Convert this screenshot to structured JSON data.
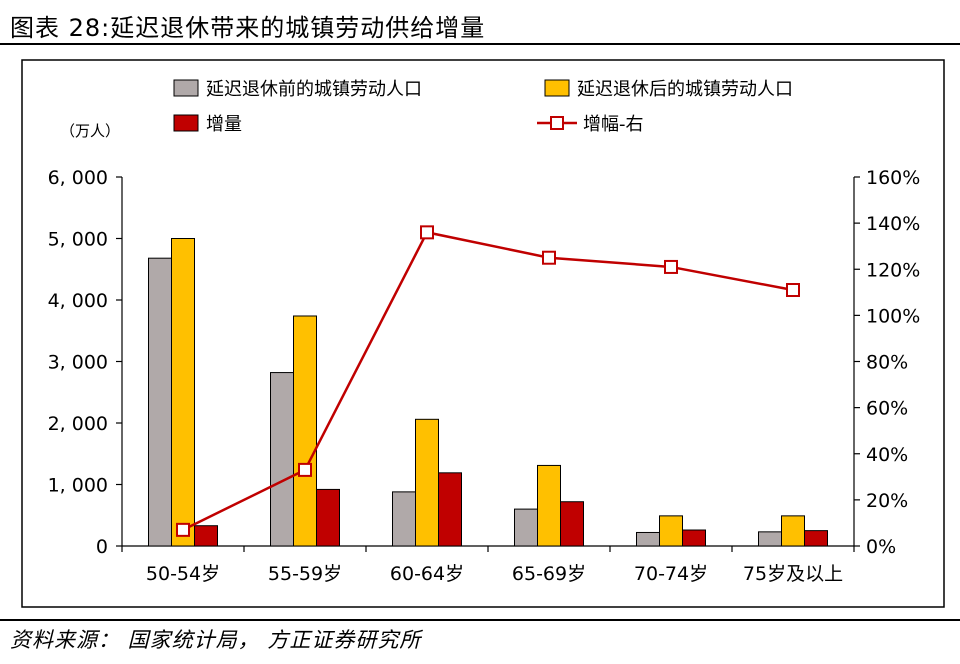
{
  "title": "图表 28:延迟退休带来的城镇劳动供给增量",
  "source": "资料来源：  国家统计局，  方正证券研究所",
  "y_unit_label": "（万人）",
  "chart_data": {
    "type": "bar",
    "categories": [
      "50-54岁",
      "55-59岁",
      "60-64岁",
      "65-69岁",
      "70-74岁",
      "75岁及以上"
    ],
    "series": [
      {
        "name": "延迟退休前的城镇劳动人口",
        "type": "bar",
        "axis": "left",
        "color": "#b0a9a9",
        "values": [
          4680,
          2820,
          880,
          600,
          220,
          230
        ]
      },
      {
        "name": "延迟退休后的城镇劳动人口",
        "type": "bar",
        "axis": "left",
        "color": "#ffc000",
        "values": [
          5000,
          3740,
          2060,
          1310,
          490,
          490
        ]
      },
      {
        "name": "增量",
        "type": "bar",
        "axis": "left",
        "color": "#c00000",
        "values": [
          330,
          920,
          1190,
          720,
          260,
          250
        ]
      },
      {
        "name": "增幅-右",
        "type": "line",
        "axis": "right",
        "color": "#c00000",
        "values": [
          7,
          33,
          136,
          125,
          121,
          111
        ]
      }
    ],
    "ylim_left": [
      0,
      6000
    ],
    "yticks_left": [
      0,
      1000,
      2000,
      3000,
      4000,
      5000,
      6000
    ],
    "yticklabels_left": [
      "0",
      "1, 000",
      "2, 000",
      "3, 000",
      "4, 000",
      "5, 000",
      "6, 000"
    ],
    "ylim_right": [
      0,
      160
    ],
    "yticks_right": [
      0,
      20,
      40,
      60,
      80,
      100,
      120,
      140,
      160
    ],
    "yticklabels_right": [
      "0%",
      "20%",
      "40%",
      "60%",
      "80%",
      "100%",
      "120%",
      "140%",
      "160%"
    ],
    "legend_position": "top",
    "grid": false
  }
}
